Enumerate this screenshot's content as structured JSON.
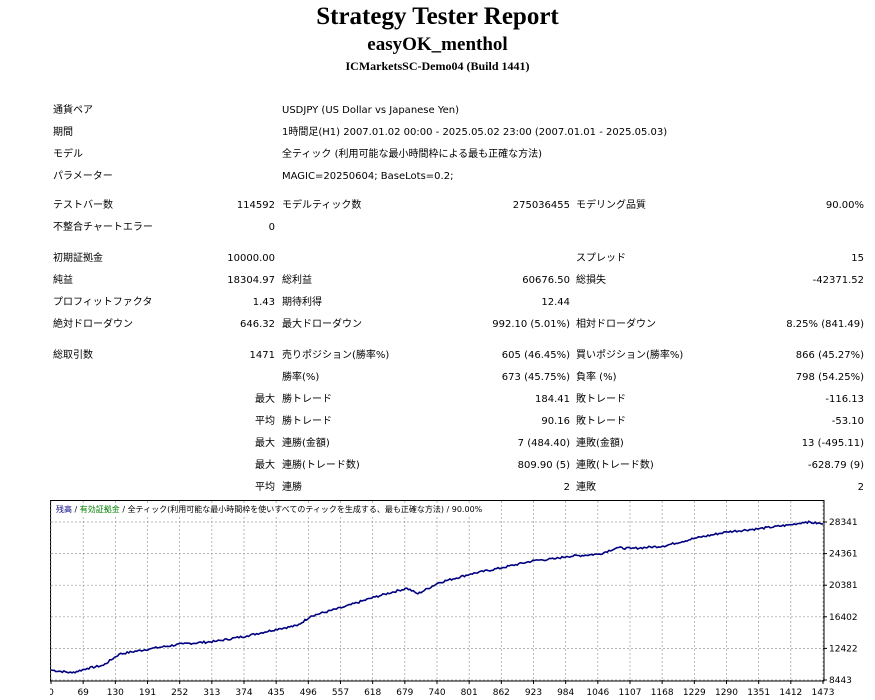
{
  "header": {
    "title": "Strategy Tester Report",
    "ea_name": "easyOK_menthol",
    "server": "ICMarketsSC-Demo04 (Build 1441)"
  },
  "settings": [
    {
      "label": "通貨ペア",
      "value": "USDJPY (US Dollar vs Japanese Yen)"
    },
    {
      "label": "期間",
      "value": "1時間足(H1) 2007.01.02 00:00 - 2025.05.02 23:00 (2007.01.01 - 2025.05.03)"
    },
    {
      "label": "モデル",
      "value": "全ティック (利用可能な最小時間枠による最も正確な方法)"
    },
    {
      "label": "パラメーター",
      "value": "MAGIC=20250604; BaseLots=0.2;"
    }
  ],
  "stats": {
    "bars_label": "テストバー数",
    "bars": "114592",
    "ticks_label": "モデルティック数",
    "ticks": "275036455",
    "quality_label": "モデリング品質",
    "quality": "90.00%",
    "mismatch_label": "不整合チャートエラー",
    "mismatch": "0",
    "deposit_label": "初期証拠金",
    "deposit": "10000.00",
    "spread_label": "スプレッド",
    "spread": "15",
    "net_label": "純益",
    "net": "18304.97",
    "gross_profit_label": "総利益",
    "gross_profit": "60676.50",
    "gross_loss_label": "総損失",
    "gross_loss": "-42371.52",
    "pf_label": "プロフィットファクタ",
    "pf": "1.43",
    "expected_label": "期待利得",
    "expected": "12.44",
    "abs_dd_label": "絶対ドローダウン",
    "abs_dd": "646.32",
    "max_dd_label": "最大ドローダウン",
    "max_dd": "992.10 (5.01%)",
    "rel_dd_label": "相対ドローダウン",
    "rel_dd": "8.25% (841.49)",
    "trades_label": "総取引数",
    "trades": "1471",
    "short_label": "売りポジション(勝率%)",
    "short": "605 (46.45%)",
    "long_label": "買いポジション(勝率%)",
    "long": "866 (45.27%)",
    "win_rate_label": "勝率(%)",
    "win_rate": "673 (45.75%)",
    "loss_rate_label": "負率 (%)",
    "loss_rate": "798 (54.25%)",
    "max_word": "最大",
    "avg_word": "平均",
    "win_trade_label": "勝トレード",
    "max_win": "184.41",
    "avg_win": "90.16",
    "loss_trade_label": "敗トレード",
    "max_loss": "-116.13",
    "avg_loss": "-53.10",
    "consec_win_amt_label": "連勝(金額)",
    "consec_win_amt": "7 (484.40)",
    "consec_loss_amt_label": "連敗(金額)",
    "consec_loss_amt": "13 (-495.11)",
    "consec_win_cnt_label": "連勝(トレード数)",
    "consec_win_cnt": "809.90 (5)",
    "consec_loss_cnt_label": "連敗(トレード数)",
    "consec_loss_cnt": "-628.79 (9)",
    "avg_consec_win_label": "連勝",
    "avg_consec_win": "2",
    "avg_consec_loss_label": "連敗",
    "avg_consec_loss": "2"
  },
  "chart_legend": {
    "balance": "残高",
    "sep1": " / ",
    "equity": "有効証拠金",
    "sep2": " / ",
    "model": "全ティック(利用可能な最小時間枠を使いすべてのティックを生成する、最も正確な方法)",
    "sep3": " / ",
    "quality": "90.00%"
  },
  "colors": {
    "balance_line": "#000080",
    "equity_label": "#008000"
  },
  "chart_data": {
    "type": "line",
    "title": "",
    "xlabel": "",
    "ylabel": "",
    "x_ticks": [
      "0",
      "69",
      "130",
      "191",
      "252",
      "313",
      "374",
      "435",
      "496",
      "557",
      "618",
      "679",
      "740",
      "801",
      "862",
      "923",
      "984",
      "1046",
      "1107",
      "1168",
      "1229",
      "1290",
      "1351",
      "1412",
      "1473"
    ],
    "y_ticks": [
      "8443",
      "12422",
      "16402",
      "20381",
      "24361",
      "28341"
    ],
    "xlim": [
      0,
      1473
    ],
    "ylim": [
      8443,
      28341
    ],
    "series": [
      {
        "values": [
          [
            0,
            9700
          ],
          [
            40,
            9350
          ],
          [
            69,
            9900
          ],
          [
            100,
            10300
          ],
          [
            130,
            11700
          ],
          [
            191,
            12400
          ],
          [
            252,
            13000
          ],
          [
            313,
            13300
          ],
          [
            374,
            14000
          ],
          [
            435,
            14900
          ],
          [
            470,
            15300
          ],
          [
            496,
            16500
          ],
          [
            557,
            17600
          ],
          [
            618,
            18900
          ],
          [
            679,
            20000
          ],
          [
            700,
            19300
          ],
          [
            740,
            20700
          ],
          [
            801,
            21800
          ],
          [
            862,
            22600
          ],
          [
            923,
            23500
          ],
          [
            960,
            23700
          ],
          [
            984,
            24000
          ],
          [
            1046,
            24300
          ],
          [
            1080,
            25100
          ],
          [
            1107,
            25000
          ],
          [
            1168,
            25300
          ],
          [
            1229,
            26300
          ],
          [
            1290,
            27100
          ],
          [
            1351,
            27500
          ],
          [
            1412,
            28000
          ],
          [
            1440,
            28350
          ],
          [
            1473,
            28100
          ]
        ]
      }
    ],
    "grid": true,
    "legend": "top-left"
  }
}
